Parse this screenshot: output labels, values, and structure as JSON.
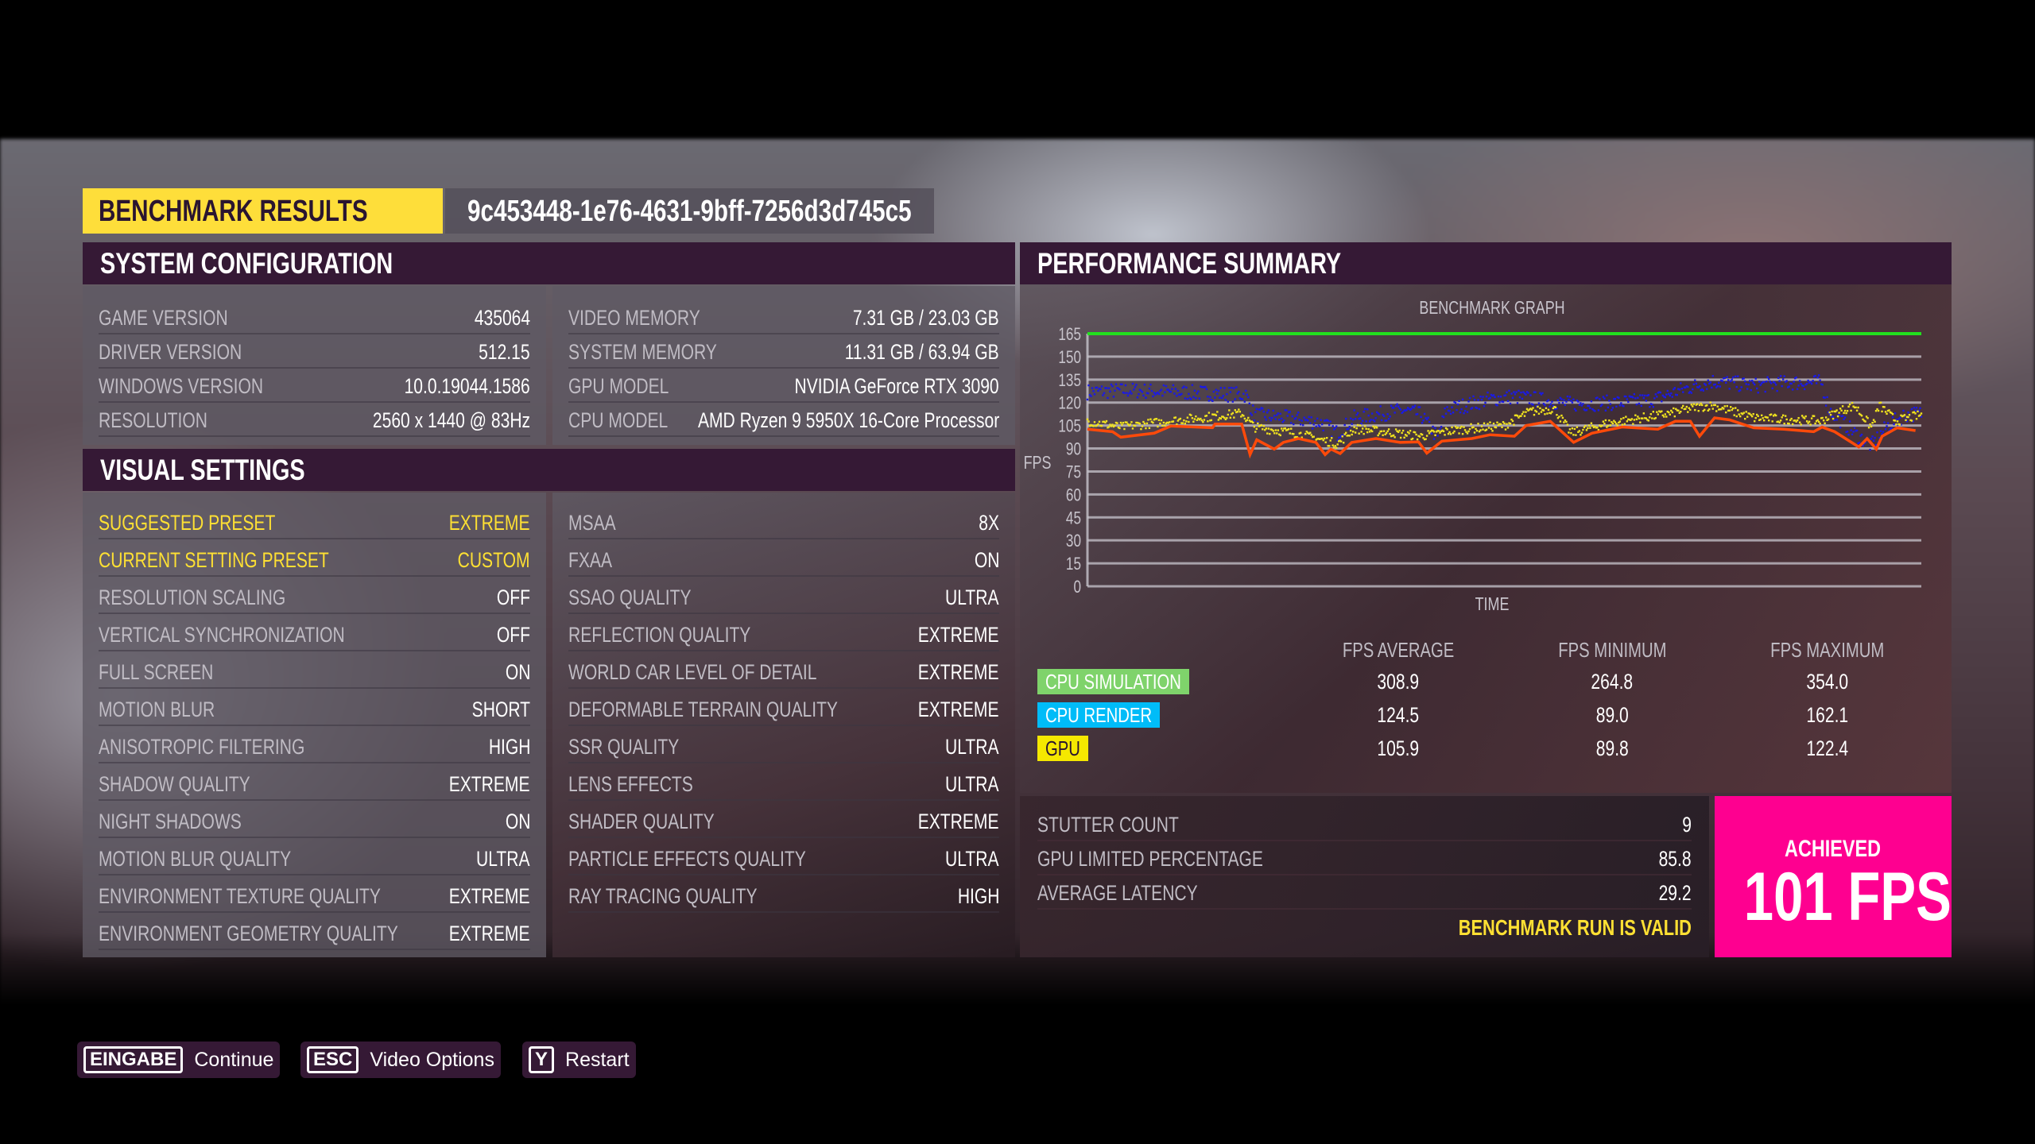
{
  "header": {
    "title": "BENCHMARK RESULTS",
    "run_id": "9c453448-1e76-4631-9bff-7256d3d745c5"
  },
  "system_configuration": {
    "title": "SYSTEM CONFIGURATION",
    "left": [
      {
        "label": "GAME VERSION",
        "value": "435064"
      },
      {
        "label": "DRIVER VERSION",
        "value": "512.15"
      },
      {
        "label": "WINDOWS VERSION",
        "value": "10.0.19044.1586"
      },
      {
        "label": "RESOLUTION",
        "value": "2560 x 1440 @ 83Hz"
      }
    ],
    "right": [
      {
        "label": "VIDEO MEMORY",
        "value": "7.31 GB / 23.03 GB"
      },
      {
        "label": "SYSTEM MEMORY",
        "value": "11.31 GB / 63.94 GB"
      },
      {
        "label": "GPU MODEL",
        "value": "NVIDIA GeForce RTX 3090"
      },
      {
        "label": "CPU MODEL",
        "value": "AMD Ryzen 9 5950X 16-Core Processor"
      }
    ]
  },
  "visual_settings": {
    "title": "VISUAL SETTINGS",
    "left": [
      {
        "label": "SUGGESTED PRESET",
        "value": "EXTREME",
        "highlight": true
      },
      {
        "label": "CURRENT SETTING PRESET",
        "value": "CUSTOM",
        "highlight": true
      },
      {
        "label": "RESOLUTION SCALING",
        "value": "OFF"
      },
      {
        "label": "VERTICAL SYNCHRONIZATION",
        "value": "OFF"
      },
      {
        "label": "FULL SCREEN",
        "value": "ON"
      },
      {
        "label": "MOTION BLUR",
        "value": "SHORT"
      },
      {
        "label": "ANISOTROPIC FILTERING",
        "value": "HIGH"
      },
      {
        "label": "SHADOW QUALITY",
        "value": "EXTREME"
      },
      {
        "label": "NIGHT SHADOWS",
        "value": "ON"
      },
      {
        "label": "MOTION BLUR QUALITY",
        "value": "ULTRA"
      },
      {
        "label": "ENVIRONMENT TEXTURE QUALITY",
        "value": "EXTREME"
      },
      {
        "label": "ENVIRONMENT GEOMETRY QUALITY",
        "value": "EXTREME"
      }
    ],
    "right": [
      {
        "label": "MSAA",
        "value": "8X"
      },
      {
        "label": "FXAA",
        "value": "ON"
      },
      {
        "label": "SSAO QUALITY",
        "value": "ULTRA"
      },
      {
        "label": "REFLECTION QUALITY",
        "value": "EXTREME"
      },
      {
        "label": "WORLD CAR LEVEL OF DETAIL",
        "value": "EXTREME"
      },
      {
        "label": "DEFORMABLE TERRAIN QUALITY",
        "value": "EXTREME"
      },
      {
        "label": "SSR QUALITY",
        "value": "ULTRA"
      },
      {
        "label": "LENS EFFECTS",
        "value": "ULTRA"
      },
      {
        "label": "SHADER QUALITY",
        "value": "EXTREME"
      },
      {
        "label": "PARTICLE EFFECTS QUALITY",
        "value": "ULTRA"
      },
      {
        "label": "RAY TRACING QUALITY",
        "value": "HIGH"
      }
    ]
  },
  "performance_summary": {
    "title": "PERFORMANCE SUMMARY",
    "columns": [
      "FPS AVERAGE",
      "FPS MINIMUM",
      "FPS MAXIMUM"
    ],
    "rows": [
      {
        "label": "CPU SIMULATION",
        "color": "#7fd36b",
        "text_color": "#ffffff",
        "values": [
          "308.9",
          "264.8",
          "354.0"
        ]
      },
      {
        "label": "CPU RENDER",
        "color": "#00bcf8",
        "text_color": "#ffffff",
        "values": [
          "124.5",
          "89.0",
          "162.1"
        ]
      },
      {
        "label": "GPU",
        "color": "#f5e800",
        "text_color": "#2a1530",
        "values": [
          "105.9",
          "89.8",
          "122.4"
        ]
      }
    ]
  },
  "stats": [
    {
      "label": "STUTTER COUNT",
      "value": "9"
    },
    {
      "label": "GPU LIMITED PERCENTAGE",
      "value": "85.8"
    },
    {
      "label": "AVERAGE LATENCY",
      "value": "29.2"
    }
  ],
  "validity": "BENCHMARK RUN IS VALID",
  "achieved": {
    "label": "ACHIEVED",
    "value": "101 FPS",
    "color": "#fe0090"
  },
  "footer": [
    {
      "key": "EINGABE",
      "label": "Continue"
    },
    {
      "key": "ESC",
      "label": "Video Options"
    },
    {
      "key": "Y",
      "label": "Restart"
    }
  ],
  "chart_data": {
    "type": "scatter",
    "title": "BENCHMARK GRAPH",
    "xlabel": "TIME",
    "ylabel": "FPS",
    "yticks": [
      0,
      15,
      30,
      45,
      60,
      75,
      90,
      105,
      120,
      135,
      150,
      165
    ],
    "ylim": [
      0,
      165
    ],
    "xlim": [
      0,
      100
    ],
    "grid": true,
    "series": [
      {
        "name": "CPU SIMULATION",
        "kind": "line",
        "color": "#22e01e",
        "points": [
          [
            0,
            165
          ],
          [
            100,
            165
          ]
        ]
      },
      {
        "name": "CPU RENDER",
        "kind": "scatter",
        "color": "#1a1ae6",
        "spread": 5,
        "points": [
          [
            0,
            127
          ],
          [
            5,
            128
          ],
          [
            10,
            127
          ],
          [
            15,
            126
          ],
          [
            19,
            125
          ],
          [
            20,
            112
          ],
          [
            24,
            110
          ],
          [
            28,
            107
          ],
          [
            30,
            100
          ],
          [
            32,
            110
          ],
          [
            38,
            115
          ],
          [
            40,
            112
          ],
          [
            42,
            97
          ],
          [
            43,
            115
          ],
          [
            48,
            122
          ],
          [
            51,
            124
          ],
          [
            54,
            122
          ],
          [
            58,
            119
          ],
          [
            64,
            120
          ],
          [
            68,
            122
          ],
          [
            71,
            128
          ],
          [
            73,
            131
          ],
          [
            75,
            134
          ],
          [
            80,
            131
          ],
          [
            84,
            133
          ],
          [
            88,
            133
          ],
          [
            89,
            115
          ],
          [
            92,
            100
          ],
          [
            94,
            92
          ],
          [
            96,
            105
          ],
          [
            98,
            112
          ],
          [
            100,
            113
          ]
        ]
      },
      {
        "name": "GPU",
        "kind": "scatter",
        "color": "#f0e21e",
        "spread": 3,
        "points": [
          [
            0,
            108
          ],
          [
            4,
            104
          ],
          [
            10,
            108
          ],
          [
            18.5,
            113
          ],
          [
            20,
            104
          ],
          [
            25,
            100
          ],
          [
            30,
            93
          ],
          [
            32,
            103
          ],
          [
            37,
            100
          ],
          [
            40,
            98
          ],
          [
            44,
            102
          ],
          [
            50,
            105
          ],
          [
            53,
            114
          ],
          [
            56,
            116
          ],
          [
            58,
            100
          ],
          [
            62,
            106
          ],
          [
            70,
            113
          ],
          [
            73,
            117
          ],
          [
            75,
            118
          ],
          [
            80,
            110
          ],
          [
            88,
            108
          ],
          [
            90,
            114
          ],
          [
            92,
            118
          ],
          [
            94,
            104
          ],
          [
            95,
            118
          ],
          [
            97,
            108
          ],
          [
            100,
            112
          ]
        ]
      },
      {
        "kind": "line",
        "color": "#ff4a0a",
        "points": [
          [
            0,
            102.6
          ],
          [
            3,
            101
          ],
          [
            4,
            97.4
          ],
          [
            8,
            100
          ],
          [
            10,
            104.7
          ],
          [
            15,
            103.6
          ],
          [
            15.3,
            106
          ],
          [
            18.5,
            106
          ],
          [
            19.5,
            86
          ],
          [
            20.3,
            95.7
          ],
          [
            22.4,
            89.6
          ],
          [
            23.5,
            94
          ],
          [
            25.3,
            96.5
          ],
          [
            27.4,
            94
          ],
          [
            28.5,
            86
          ],
          [
            29.2,
            89.6
          ],
          [
            30.3,
            86.7
          ],
          [
            31.7,
            94
          ],
          [
            34.6,
            96.5
          ],
          [
            37.5,
            94
          ],
          [
            39.7,
            94.3
          ],
          [
            40.7,
            87
          ],
          [
            42.5,
            94.8
          ],
          [
            46.1,
            96.5
          ],
          [
            48.3,
            99
          ],
          [
            51.2,
            98
          ],
          [
            52.6,
            105
          ],
          [
            55.5,
            107.8
          ],
          [
            58.3,
            94
          ],
          [
            60.5,
            100
          ],
          [
            64.1,
            104
          ],
          [
            68.4,
            102.6
          ],
          [
            70.5,
            107.8
          ],
          [
            72.3,
            107.8
          ],
          [
            73.4,
            98
          ],
          [
            75.2,
            110
          ],
          [
            77,
            108.7
          ],
          [
            79.9,
            103.5
          ],
          [
            83.5,
            102.6
          ],
          [
            87.1,
            101
          ],
          [
            88.1,
            104
          ],
          [
            89.6,
            101
          ],
          [
            92.5,
            91
          ],
          [
            93.5,
            96.5
          ],
          [
            94.6,
            89.6
          ],
          [
            95.3,
            98
          ],
          [
            97.1,
            103.5
          ],
          [
            99.3,
            101.7
          ]
        ]
      }
    ]
  }
}
